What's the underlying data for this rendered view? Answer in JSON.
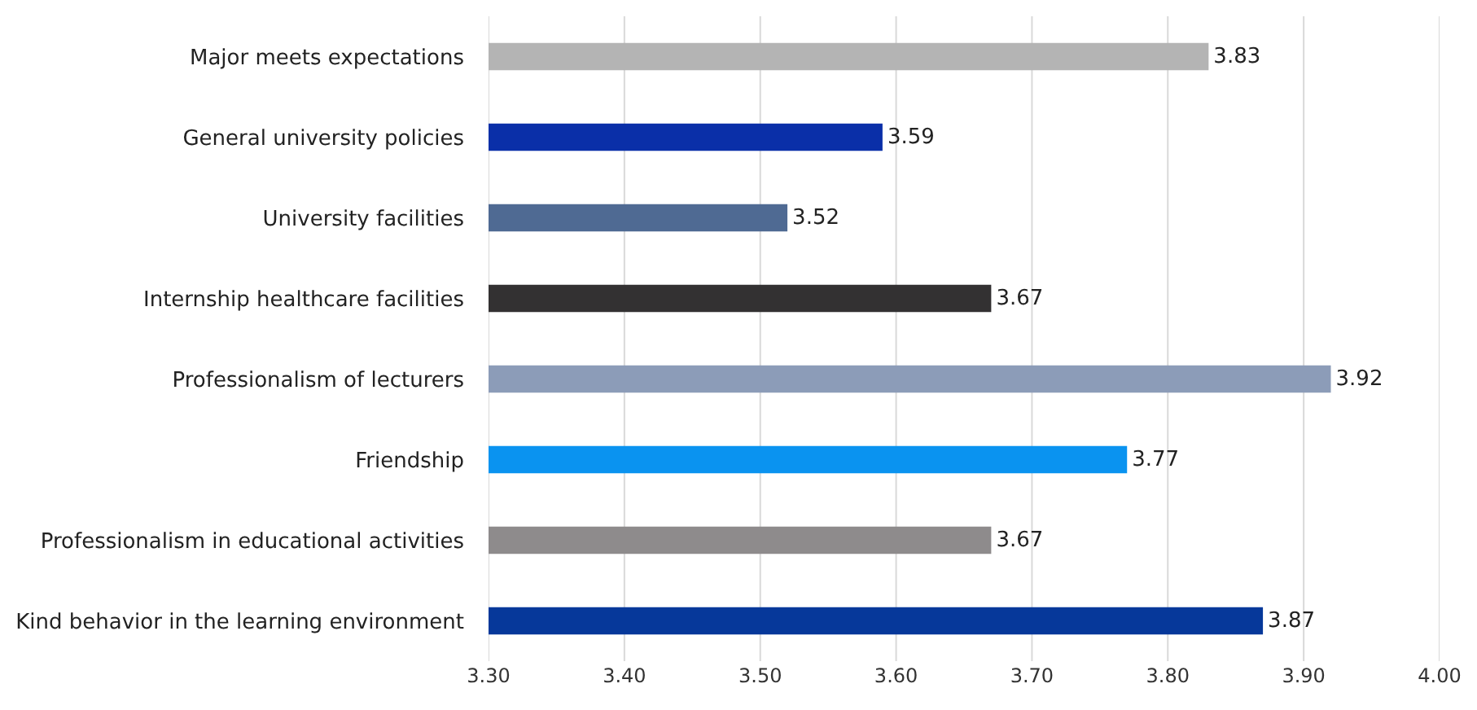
{
  "chart_data": {
    "type": "bar",
    "orientation": "horizontal",
    "categories": [
      "Major meets expectations",
      "General university policies",
      "University facilities",
      "Internship healthcare facilities",
      "Professionalism of lecturers",
      "Friendship",
      "Professionalism in educational activities",
      "Kind behavior in the learning environment"
    ],
    "values": [
      3.83,
      3.59,
      3.52,
      3.67,
      3.92,
      3.77,
      3.67,
      3.87
    ],
    "colors": [
      "#b4b4b4",
      "#0a2fa8",
      "#4f6a93",
      "#333132",
      "#8c9cb8",
      "#0a93f0",
      "#8e8b8c",
      "#06389a"
    ],
    "xlim": [
      3.3,
      4.0
    ],
    "xticks": [
      {
        "value": 3.3,
        "label": "3.30"
      },
      {
        "value": 3.4,
        "label": "3.40"
      },
      {
        "value": 3.5,
        "label": "3.50"
      },
      {
        "value": 3.6,
        "label": "3.60"
      },
      {
        "value": 3.7,
        "label": "3.70"
      },
      {
        "value": 3.8,
        "label": "3.80"
      },
      {
        "value": 3.9,
        "label": "3.90"
      },
      {
        "value": 4.0,
        "label": "4.00"
      }
    ],
    "data_labels": true,
    "grid": "x"
  }
}
